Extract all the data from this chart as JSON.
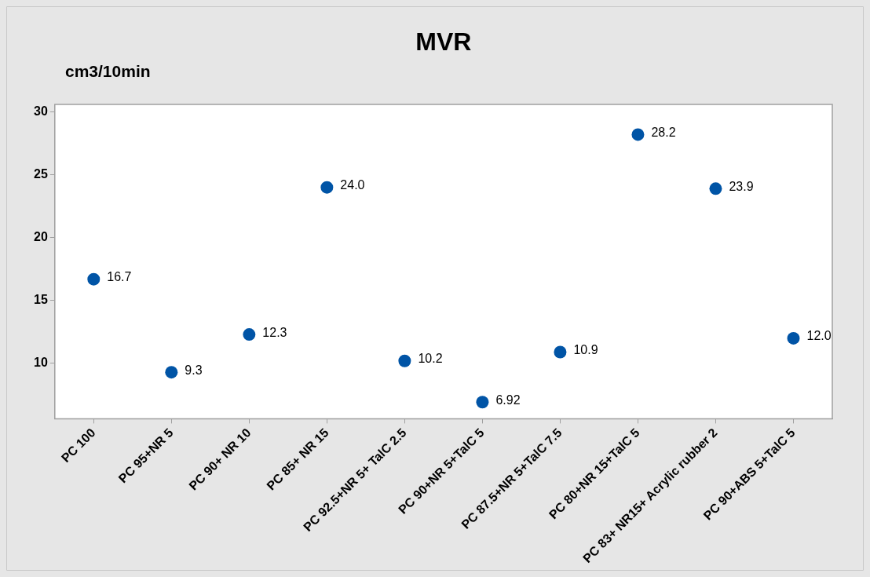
{
  "chart_data": {
    "type": "scatter",
    "title": "MVR",
    "ylabel": "cm3/10min",
    "categories": [
      "PC 100",
      "PC 95+NR 5",
      "PC 90+ NR 10",
      "PC 85+ NR 15",
      "PC 92.5+NR 5+ TalC 2.5",
      "PC 90+NR 5+TalC 5",
      "PC 87.5+NR 5+TalC 7.5",
      "PC 80+NR 15+TalC 5",
      "PC 83+ NR15+ Acrylic rubber 2",
      "PC 90+ABS 5+TalC 5"
    ],
    "values": [
      16.7,
      9.3,
      12.3,
      24.0,
      10.2,
      6.92,
      10.9,
      28.2,
      23.9,
      12.0
    ],
    "value_labels": [
      "16.7",
      "9.3",
      "12.3",
      "24.0",
      "10.2",
      "6.92",
      "10.9",
      "28.2",
      "23.9",
      "12.0"
    ],
    "color": "#0054a6",
    "ylim": [
      5.6,
      30.6
    ],
    "yticks": [
      10,
      15,
      20,
      25,
      30
    ],
    "marker": "circle",
    "grid": false,
    "legend": false
  }
}
